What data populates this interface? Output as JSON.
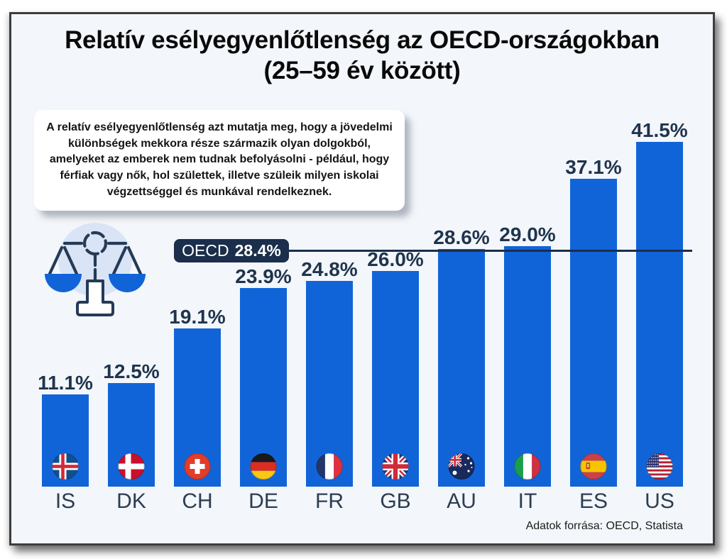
{
  "title": {
    "line1": "Relatív esélyegyenlőtlenség az OECD-országokban",
    "line2": "(25–59 év között)"
  },
  "description": {
    "text": "A relatív esélyegyenlőtlenség azt mutatja meg, hogy a jövedelmi különbségek mekkora része származik olyan dolgokból, amelyeket az emberek nem tudnak befolyásolni - például, hogy férfiak vagy nők, hol születtek, illetve szüleik milyen iskolai végzettséggel és munkával rendelkeznek."
  },
  "source": {
    "text": "Adatok forrása: OECD, Statista"
  },
  "colors": {
    "bar": "#1164d8",
    "navy": "#1b2e4b",
    "label_text": "#1f344d",
    "background": "#f3f6fa",
    "icon_circle": "#d9e5f6",
    "icon_stroke": "#263a55"
  },
  "icons": {
    "balance_scale": "balance-scale-icon"
  },
  "chart_data": {
    "type": "bar",
    "title": "Relatív esélyegyenlőtlenség az OECD-országokban (25–59 év között)",
    "unit": "%",
    "categories": [
      "IS",
      "DK",
      "CH",
      "DE",
      "FR",
      "GB",
      "AU",
      "IT",
      "ES",
      "US"
    ],
    "values": [
      11.1,
      12.5,
      19.1,
      23.9,
      24.8,
      26.0,
      28.6,
      29.0,
      37.1,
      41.5
    ],
    "value_labels": [
      "11.1%",
      "12.5%",
      "19.1%",
      "23.9%",
      "24.8%",
      "26.0%",
      "28.6%",
      "29.0%",
      "37.1%",
      "41.5%"
    ],
    "reference_line": {
      "label": "OECD",
      "value": 28.4,
      "value_label": "28.4%"
    },
    "xlabel": "",
    "ylabel": "",
    "ylim": [
      0,
      45
    ],
    "grid": false,
    "legend": false
  }
}
